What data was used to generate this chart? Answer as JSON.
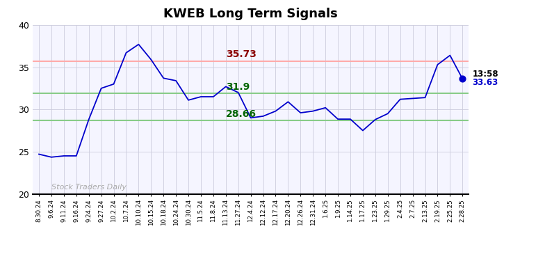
{
  "title": "KWEB Long Term Signals",
  "ylim": [
    20,
    40
  ],
  "yticks": [
    20,
    25,
    30,
    35,
    40
  ],
  "red_line": 35.73,
  "green_line_upper": 31.9,
  "green_line_lower": 28.66,
  "red_line_label": "35.73",
  "green_upper_label": "31.9",
  "green_lower_label": "28.66",
  "last_time": "13:58",
  "last_price": 33.63,
  "watermark": "Stock Traders Daily",
  "line_color": "#0000cc",
  "red_hline_color": "#ffaaaa",
  "green_hline_color": "#88cc88",
  "bg_color": "#f5f5ff",
  "x_labels": [
    "8.30.24",
    "9.6.24",
    "9.11.24",
    "9.16.24",
    "9.24.24",
    "9.27.24",
    "10.2.24",
    "10.7.24",
    "10.10.24",
    "10.15.24",
    "10.18.24",
    "10.24.24",
    "10.30.24",
    "11.5.24",
    "11.8.24",
    "11.13.24",
    "11.27.24",
    "12.4.24",
    "12.12.24",
    "12.17.24",
    "12.20.24",
    "12.26.24",
    "12.31.24",
    "1.6.25",
    "1.9.25",
    "1.14.25",
    "1.17.25",
    "1.23.25",
    "1.29.25",
    "2.4.25",
    "2.7.25",
    "2.13.25",
    "2.19.25",
    "2.25.25",
    "2.28.25"
  ],
  "y_values": [
    24.7,
    24.35,
    24.5,
    24.5,
    28.8,
    32.5,
    33.0,
    36.7,
    37.7,
    35.9,
    33.7,
    33.4,
    31.1,
    31.5,
    31.5,
    32.7,
    32.0,
    29.0,
    29.2,
    29.8,
    30.9,
    29.6,
    29.8,
    30.2,
    28.85,
    28.85,
    27.5,
    28.8,
    29.5,
    31.2,
    31.3,
    31.4,
    35.3,
    36.4,
    33.63
  ]
}
